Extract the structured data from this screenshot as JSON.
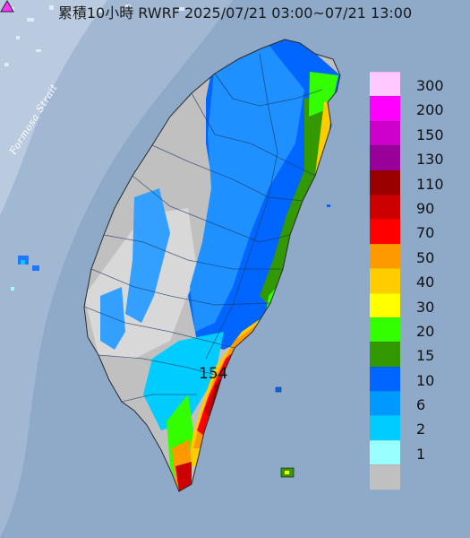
{
  "map": {
    "title": "累積10小時 RWRF 2025/07/21 03:00~07/21 13:00",
    "strait_label": "Formosa Strait",
    "max_value_label": "154"
  },
  "legend": {
    "items": [
      {
        "label": "300",
        "color": "#ffc8ff"
      },
      {
        "label": "200",
        "color": "#ff00ff"
      },
      {
        "label": "150",
        "color": "#cc00cc"
      },
      {
        "label": "130",
        "color": "#990099"
      },
      {
        "label": "110",
        "color": "#990000"
      },
      {
        "label": "90",
        "color": "#cc0000"
      },
      {
        "label": "70",
        "color": "#ff0000"
      },
      {
        "label": "50",
        "color": "#ff9900"
      },
      {
        "label": "40",
        "color": "#ffcc00"
      },
      {
        "label": "30",
        "color": "#ffff00"
      },
      {
        "label": "20",
        "color": "#33ff00"
      },
      {
        "label": "15",
        "color": "#339900"
      },
      {
        "label": "10",
        "color": "#0066ff"
      },
      {
        "label": "6",
        "color": "#0099ff"
      },
      {
        "label": "2",
        "color": "#00ccff"
      },
      {
        "label": "1",
        "color": "#99ffff"
      },
      {
        "label": "",
        "color": "#c0c0c0"
      }
    ]
  }
}
